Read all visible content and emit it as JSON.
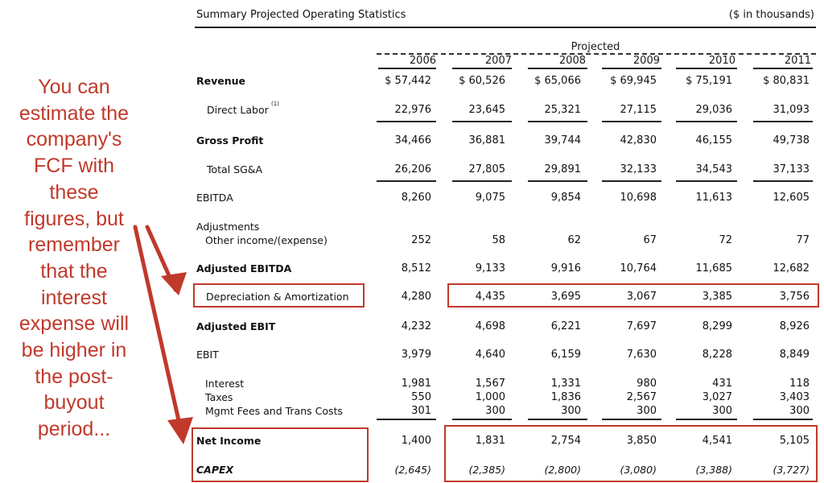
{
  "annotation": {
    "lines": [
      "You can",
      "estimate the",
      "company's",
      "FCF with",
      "these",
      "figures, but",
      "remember",
      "that the",
      "interest",
      "expense will",
      "be higher in",
      "the post-",
      "buyout",
      "period..."
    ],
    "color": "#c0392b"
  },
  "table": {
    "title": "Summary Projected Operating Statistics",
    "units": "($ in thousands)",
    "projected_label": "Projected",
    "years": [
      "2006",
      "2007",
      "2008",
      "2009",
      "2010",
      "2011"
    ],
    "rows": [
      {
        "label": "Revenue",
        "values": [
          "$ 57,442",
          "$ 60,526",
          "$ 65,066",
          "$ 69,945",
          "$ 75,191",
          "$ 80,831"
        ]
      },
      {
        "label": "Direct Labor",
        "footnote": "(1)",
        "values": [
          "22,976",
          "23,645",
          "25,321",
          "27,115",
          "29,036",
          "31,093"
        ]
      },
      {
        "label": "Gross Profit",
        "values": [
          "34,466",
          "36,881",
          "39,744",
          "42,830",
          "46,155",
          "49,738"
        ]
      },
      {
        "label": "Total SG&A",
        "values": [
          "26,206",
          "27,805",
          "29,891",
          "32,133",
          "34,543",
          "37,133"
        ]
      },
      {
        "label": "EBITDA",
        "values": [
          "8,260",
          "9,075",
          "9,854",
          "10,698",
          "11,613",
          "12,605"
        ]
      },
      {
        "label": "Adjustments",
        "values": []
      },
      {
        "label": "Other income/(expense)",
        "values": [
          "252",
          "58",
          "62",
          "67",
          "72",
          "77"
        ]
      },
      {
        "label": "Adjusted EBITDA",
        "values": [
          "8,512",
          "9,133",
          "9,916",
          "10,764",
          "11,685",
          "12,682"
        ]
      },
      {
        "label": "Depreciation & Amortization",
        "values": [
          "4,280",
          "4,435",
          "3,695",
          "3,067",
          "3,385",
          "3,756"
        ]
      },
      {
        "label": "Adjusted EBIT",
        "values": [
          "4,232",
          "4,698",
          "6,221",
          "7,697",
          "8,299",
          "8,926"
        ]
      },
      {
        "label": "EBIT",
        "values": [
          "3,979",
          "4,640",
          "6,159",
          "7,630",
          "8,228",
          "8,849"
        ]
      },
      {
        "label": "Interest",
        "values": [
          "1,981",
          "1,567",
          "1,331",
          "980",
          "431",
          "118"
        ]
      },
      {
        "label": "Taxes",
        "values": [
          "550",
          "1,000",
          "1,836",
          "2,567",
          "3,027",
          "3,403"
        ]
      },
      {
        "label": "Mgmt Fees and Trans Costs",
        "values": [
          "301",
          "300",
          "300",
          "300",
          "300",
          "300"
        ]
      },
      {
        "label": "Net Income",
        "values": [
          "1,400",
          "1,831",
          "2,754",
          "3,850",
          "4,541",
          "5,105"
        ]
      },
      {
        "label": "CAPEX",
        "values": [
          "(2,645)",
          "(2,385)",
          "(2,800)",
          "(3,080)",
          "(3,388)",
          "(3,727)"
        ]
      }
    ]
  }
}
